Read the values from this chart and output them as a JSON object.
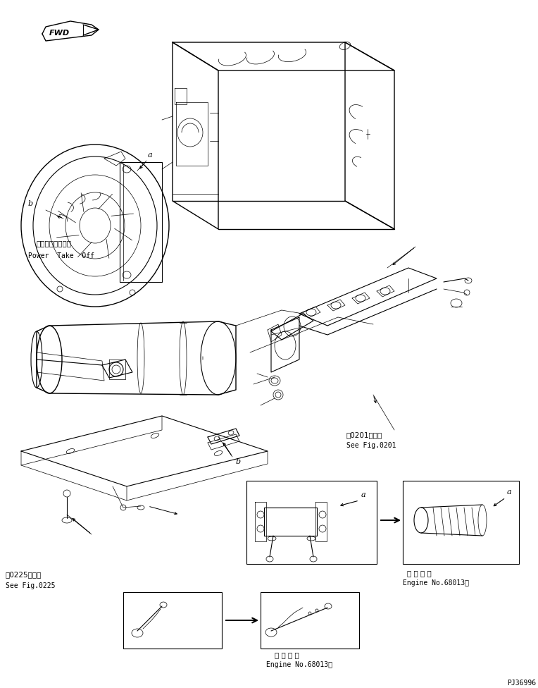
{
  "bg_color": "#ffffff",
  "fig_width": 7.64,
  "fig_height": 9.76,
  "dpi": 100,
  "fwd_label": "FWD",
  "pto_label_jp": "パワーテークオフ",
  "pto_label_en": "Power  Take  Off",
  "ref_0201_jp": "第0201図参照",
  "ref_0201_en": "See Fig.0201",
  "ref_0225_jp": "第0225図参照",
  "ref_0225_en": "See Fig.0225",
  "engine_note_jp": "適 用 号 機",
  "engine_note_en": "Engine No.68013～",
  "part_id": "PJ36996",
  "label_a": "a",
  "label_b": "b"
}
